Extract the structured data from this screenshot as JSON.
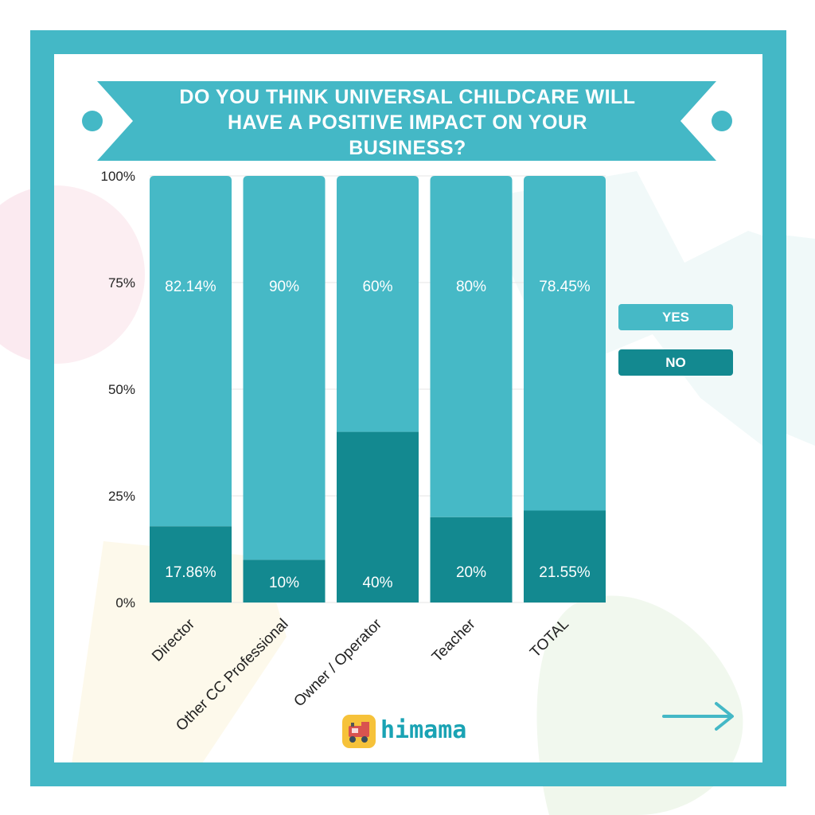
{
  "colors": {
    "frame": "#44b8c6",
    "yes": "#46b9c6",
    "no": "#138990",
    "grid": "#e6e6e6",
    "text": "#222222"
  },
  "title": "DO YOU THINK UNIVERSAL CHILDCARE WILL HAVE A POSITIVE IMPACT ON YOUR BUSINESS?",
  "logo": {
    "text": "himama",
    "icon": "train-icon"
  },
  "next_icon": "arrow-right-icon",
  "legend": {
    "yes": "YES",
    "no": "NO"
  },
  "chart_data": {
    "type": "bar",
    "stacked": true,
    "title": "DO YOU THINK UNIVERSAL CHILDCARE WILL HAVE A POSITIVE IMPACT ON YOUR BUSINESS?",
    "categories": [
      "Director",
      "Other CC Professional",
      "Owner / Operator",
      "Teacher",
      "TOTAL"
    ],
    "series": [
      {
        "name": "NO",
        "values": [
          17.86,
          10,
          40,
          20,
          21.55
        ],
        "labels": [
          "17.86%",
          "10%",
          "40%",
          "20%",
          "21.55%"
        ]
      },
      {
        "name": "YES",
        "values": [
          82.14,
          90,
          60,
          80,
          78.45
        ],
        "labels": [
          "82.14%",
          "90%",
          "60%",
          "80%",
          "78.45%"
        ]
      }
    ],
    "yticks": [
      "0%",
      "25%",
      "50%",
      "75%",
      "100%"
    ],
    "ylim": [
      0,
      100
    ],
    "grid": true,
    "legend_position": "right"
  }
}
